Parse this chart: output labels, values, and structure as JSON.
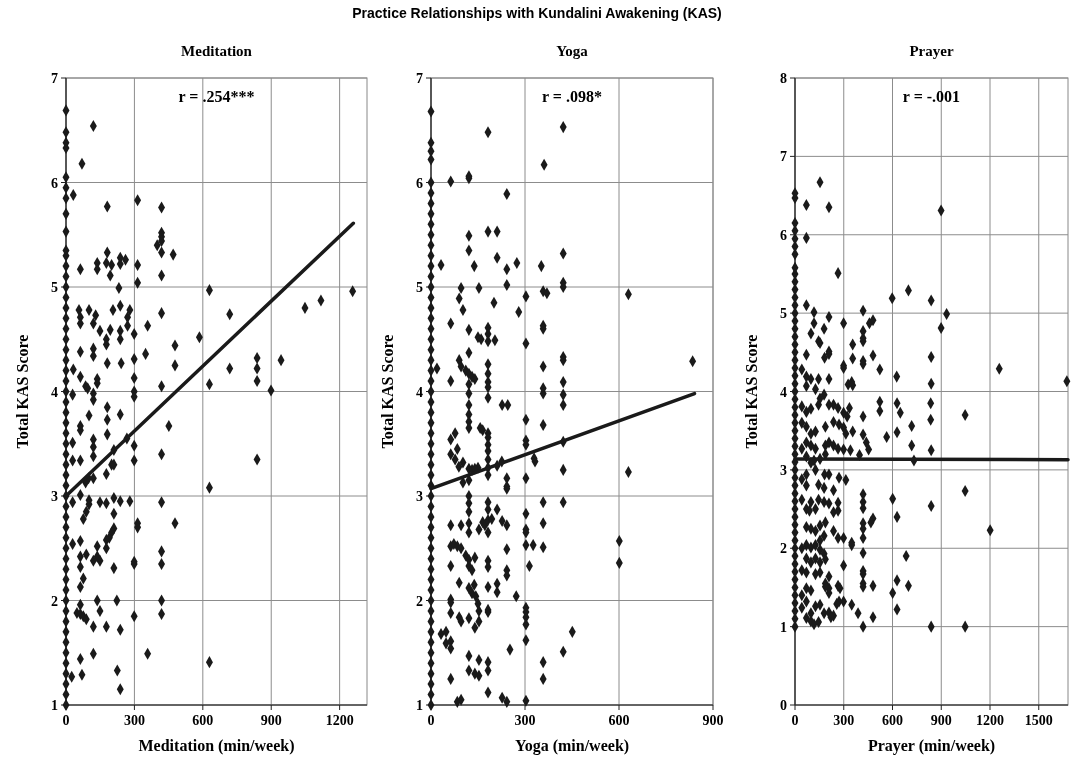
{
  "chart_data": [
    {
      "type": "other",
      "title": "Practice Relationships with Kundalini Awakening (KAS)"
    },
    {
      "type": "scatter",
      "title": "Meditation",
      "xlabel": "Meditation (min/week)",
      "ylabel": "Total KAS Score",
      "xlim": [
        0,
        1320
      ],
      "xticks": [
        0,
        300,
        600,
        900,
        1200
      ],
      "ylim": [
        1,
        7
      ],
      "yticks": [
        1,
        2,
        3,
        4,
        5,
        6,
        7
      ],
      "grid": true,
      "marker": "diamond",
      "annotations": [
        "r = .254***"
      ],
      "series": [
        {
          "color": "#1a1a1a",
          "x": [
            0,
            0,
            0,
            0,
            0,
            0,
            0,
            0,
            0,
            0,
            0,
            0,
            0,
            0,
            0,
            0,
            0,
            0,
            0,
            0,
            0,
            0,
            0,
            0,
            0,
            0,
            0,
            0,
            0,
            0,
            0,
            0,
            0,
            0,
            0,
            0,
            0,
            0,
            0,
            0,
            0,
            0,
            0,
            0,
            0,
            0,
            0,
            0,
            0,
            0,
            0,
            0,
            0,
            0
          ],
          "values": [
            1.0,
            1.1,
            1.2,
            1.3,
            1.4,
            1.5,
            1.6,
            1.7,
            1.8,
            1.9,
            2.0,
            2.1,
            2.2,
            2.3,
            2.4,
            2.5,
            2.6,
            2.7,
            2.8,
            2.9,
            3.0,
            3.1,
            3.2,
            3.3,
            3.4,
            3.5,
            3.6,
            3.7,
            3.8,
            3.9,
            4.0,
            4.1,
            4.2,
            4.3,
            4.4,
            4.5,
            4.6,
            4.7,
            4.8,
            4.9,
            5.0,
            5.1,
            5.2,
            5.3,
            5.35,
            5.53,
            5.7,
            5.85,
            5.95,
            6.05,
            6.33,
            6.38,
            6.48,
            6.69
          ]
        },
        {
          "color": "#1a1a1a",
          "x": [
            120,
            70,
            32,
            181,
            314,
            419,
            419,
            419,
            419,
            400,
            419,
            470,
            181,
            137,
            137,
            177,
            200,
            238,
            261,
            238,
            194,
            314,
            314,
            63,
            419,
            232,
            629,
            57,
            101,
            63,
            63,
            130,
            206,
            238,
            280,
            270,
            419,
            718,
            1048,
            1118,
            1257,
            120,
            149,
            194,
            177,
            177,
            238,
            238,
            270,
            299,
            358,
            585,
            478,
            63,
            120,
            120,
            181,
            299,
            349,
            242,
            478,
            838,
            838,
            838,
            943,
            899,
            718,
            629,
            419,
            32,
            63,
            137,
            137,
            86,
            95,
            299,
            299,
            299,
            120,
            120,
            29,
            181,
            101,
            181,
            181,
            238,
            451,
            63,
            63,
            120,
            120,
            29,
            267,
            299,
            210,
            120,
            63,
            29,
            200,
            210,
            177,
            299,
            419,
            838,
            86,
            99,
            120,
            629,
            29,
            63,
            101,
            101,
            149,
            177,
            210,
            238,
            280,
            419,
            89,
            76,
            210,
            210,
            200,
            190,
            314,
            314,
            478,
            177,
            177,
            29,
            63,
            137,
            137,
            149,
            89,
            63,
            63,
            120,
            210,
            299,
            299,
            419,
            419,
            76,
            63,
            137,
            223,
            419,
            419,
            63,
            48,
            63,
            76,
            89,
            149,
            120,
            177,
            238,
            299,
            358,
            120,
            629,
            63,
            70,
            225,
            238,
            25
          ],
          "values": [
            6.54,
            6.18,
            5.88,
            5.77,
            5.83,
            5.76,
            5.52,
            5.48,
            5.44,
            5.4,
            5.33,
            5.31,
            5.33,
            5.23,
            5.17,
            5.23,
            5.21,
            5.28,
            5.26,
            5.22,
            5.11,
            5.21,
            5.04,
            5.17,
            5.11,
            4.99,
            4.97,
            4.78,
            4.78,
            4.71,
            4.65,
            4.73,
            4.78,
            4.82,
            4.78,
            4.71,
            4.75,
            4.74,
            4.8,
            4.87,
            4.96,
            4.65,
            4.58,
            4.59,
            4.5,
            4.45,
            4.58,
            4.5,
            4.63,
            4.55,
            4.63,
            4.52,
            4.44,
            4.38,
            4.41,
            4.34,
            4.27,
            4.31,
            4.36,
            4.27,
            4.25,
            4.32,
            4.22,
            4.1,
            4.3,
            4.01,
            4.22,
            4.07,
            4.05,
            4.21,
            4.14,
            4.12,
            4.08,
            4.05,
            4.03,
            4.13,
            4.0,
            3.95,
            3.98,
            3.92,
            3.97,
            3.85,
            3.77,
            3.73,
            3.59,
            3.78,
            3.67,
            3.67,
            3.63,
            3.54,
            3.47,
            3.51,
            3.55,
            3.48,
            3.44,
            3.38,
            3.34,
            3.34,
            3.3,
            3.3,
            3.21,
            3.34,
            3.4,
            3.35,
            3.13,
            3.17,
            3.17,
            3.08,
            2.94,
            3.01,
            2.96,
            2.92,
            2.94,
            2.93,
            2.98,
            2.95,
            2.95,
            2.94,
            2.85,
            2.78,
            2.83,
            2.69,
            2.65,
            2.6,
            2.74,
            2.7,
            2.74,
            2.58,
            2.5,
            2.54,
            2.57,
            2.52,
            2.42,
            2.38,
            2.44,
            2.42,
            2.32,
            2.38,
            2.31,
            2.37,
            2.35,
            2.47,
            2.35,
            2.21,
            2.13,
            2.0,
            2.0,
            2.0,
            1.87,
            1.96,
            1.88,
            1.87,
            1.85,
            1.82,
            1.9,
            1.75,
            1.75,
            1.72,
            1.85,
            1.49,
            1.49,
            1.41,
            1.44,
            1.29,
            1.33,
            1.15,
            1.27
          ]
        },
        {
          "type": "line",
          "marker": "none",
          "color": "#1a1a1a",
          "x": [
            0,
            1260
          ],
          "values": [
            3.0,
            5.61
          ]
        }
      ]
    },
    {
      "type": "scatter",
      "title": "Yoga",
      "xlabel": "Yoga (min/week)",
      "ylabel": "Total KAS Score",
      "xlim": [
        0,
        900
      ],
      "xticks": [
        0,
        300,
        600,
        900
      ],
      "ylim": [
        1,
        7
      ],
      "yticks": [
        1,
        2,
        3,
        4,
        5,
        6,
        7
      ],
      "grid": true,
      "marker": "diamond",
      "annotations": [
        "r = .098*"
      ],
      "series": [
        {
          "color": "#1a1a1a",
          "x": [
            0,
            0,
            0,
            0,
            0,
            0,
            0,
            0,
            0,
            0,
            0,
            0,
            0,
            0,
            0,
            0,
            0,
            0,
            0,
            0,
            0,
            0,
            0,
            0,
            0,
            0,
            0,
            0,
            0,
            0,
            0,
            0,
            0,
            0,
            0,
            0,
            0,
            0,
            0,
            0,
            0,
            0,
            0,
            0,
            0,
            0,
            0,
            0,
            0,
            0,
            0,
            0,
            0,
            0,
            0
          ],
          "values": [
            1.0,
            1.1,
            1.2,
            1.3,
            1.4,
            1.5,
            1.6,
            1.7,
            1.8,
            1.9,
            2.0,
            2.1,
            2.2,
            2.3,
            2.4,
            2.5,
            2.6,
            2.7,
            2.8,
            2.9,
            3.0,
            3.1,
            3.2,
            3.3,
            3.4,
            3.5,
            3.6,
            3.7,
            3.8,
            3.9,
            4.0,
            4.1,
            4.2,
            4.3,
            4.4,
            4.5,
            4.6,
            4.7,
            4.8,
            4.9,
            5.0,
            5.1,
            5.2,
            5.3,
            5.4,
            5.5,
            5.6,
            5.7,
            5.8,
            5.9,
            6.0,
            6.22,
            6.3,
            6.38,
            6.68
          ]
        },
        {
          "color": "#1a1a1a",
          "x": [
            182,
            422,
            361,
            63,
            121,
            121,
            242,
            182,
            211,
            121,
            121,
            211,
            242,
            274,
            138,
            32,
            352,
            422,
            422,
            422,
            242,
            96,
            153,
            90,
            102,
            201,
            303,
            358,
            370,
            280,
            630,
            63,
            121,
            182,
            182,
            182,
            150,
            160,
            204,
            358,
            358,
            303,
            121,
            90,
            96,
            422,
            422,
            835,
            19,
            111,
            121,
            131,
            140,
            182,
            182,
            182,
            182,
            358,
            358,
            358,
            63,
            121,
            121,
            422,
            422,
            422,
            182,
            227,
            245,
            121,
            121,
            303,
            121,
            121,
            157,
            165,
            358,
            77,
            63,
            84,
            63,
            182,
            182,
            182,
            182,
            303,
            303,
            422,
            329,
            332,
            77,
            102,
            89,
            121,
            131,
            150,
            140,
            182,
            182,
            182,
            226,
            211,
            422,
            630,
            242,
            242,
            242,
            303,
            102,
            121,
            121,
            121,
            121,
            182,
            182,
            358,
            422,
            211,
            63,
            96,
            121,
            121,
            165,
            172,
            182,
            194,
            153,
            182,
            227,
            242,
            303,
            303,
            303,
            303,
            358,
            358,
            326,
            63,
            73,
            84,
            96,
            242,
            601,
            601,
            63,
            111,
            121,
            121,
            140,
            131,
            182,
            182,
            314,
            242,
            242,
            90,
            121,
            138,
            131,
            143,
            150,
            182,
            211,
            211,
            272,
            63,
            63,
            153,
            182,
            182,
            63,
            90,
            96,
            121,
            140,
            153,
            303,
            303,
            303,
            303,
            303,
            32,
            48,
            48,
            63,
            63,
            451,
            422,
            252,
            121,
            153,
            182,
            182,
            121,
            140,
            153,
            358,
            358,
            63,
            182,
            227,
            242,
            84,
            96,
            303
          ],
          "values": [
            6.48,
            6.53,
            6.17,
            6.01,
            6.06,
            6.04,
            5.89,
            5.53,
            5.53,
            5.49,
            5.35,
            5.28,
            5.17,
            5.23,
            5.2,
            5.21,
            5.2,
            5.32,
            5.04,
            5.0,
            5.02,
            4.99,
            4.99,
            4.89,
            4.78,
            4.85,
            4.91,
            4.96,
            4.94,
            4.76,
            4.93,
            4.65,
            4.59,
            4.61,
            4.55,
            4.48,
            4.52,
            4.5,
            4.49,
            4.63,
            4.6,
            4.46,
            4.37,
            4.3,
            4.24,
            4.33,
            4.3,
            4.29,
            4.22,
            4.2,
            4.17,
            4.14,
            4.12,
            4.26,
            4.17,
            4.09,
            4.04,
            4.24,
            4.03,
            3.98,
            4.1,
            4.07,
            3.98,
            4.09,
            3.97,
            3.87,
            3.94,
            3.87,
            3.87,
            3.87,
            3.78,
            3.73,
            3.71,
            3.65,
            3.65,
            3.63,
            3.68,
            3.6,
            3.54,
            3.45,
            3.4,
            3.6,
            3.56,
            3.49,
            3.43,
            3.53,
            3.49,
            3.52,
            3.36,
            3.33,
            3.35,
            3.32,
            3.28,
            3.26,
            3.25,
            3.27,
            3.26,
            3.35,
            3.27,
            3.2,
            3.33,
            3.29,
            3.25,
            3.23,
            3.17,
            3.09,
            3.07,
            3.17,
            3.13,
            3.15,
            3.0,
            2.93,
            2.85,
            2.94,
            2.87,
            2.94,
            2.94,
            2.87,
            2.72,
            2.72,
            2.74,
            2.65,
            2.75,
            2.72,
            2.77,
            2.78,
            2.68,
            2.65,
            2.76,
            2.72,
            2.83,
            2.68,
            2.65,
            2.53,
            2.74,
            2.51,
            2.53,
            2.52,
            2.54,
            2.52,
            2.5,
            2.49,
            2.57,
            2.36,
            2.33,
            2.43,
            2.39,
            2.33,
            2.41,
            2.29,
            2.38,
            2.32,
            2.33,
            2.29,
            2.24,
            2.17,
            2.12,
            2.15,
            2.07,
            2.04,
            1.97,
            2.13,
            2.16,
            2.08,
            2.04,
            2.01,
            1.98,
            1.9,
            1.89,
            1.91,
            1.88,
            1.84,
            1.8,
            1.83,
            1.74,
            1.8,
            1.93,
            1.89,
            1.84,
            1.77,
            1.62,
            1.68,
            1.7,
            1.59,
            1.61,
            1.54,
            1.7,
            1.51,
            1.53,
            1.47,
            1.43,
            1.41,
            1.33,
            1.33,
            1.3,
            1.28,
            1.41,
            1.25,
            1.25,
            1.12,
            1.07,
            1.03,
            1.03,
            1.05,
            1.04
          ]
        },
        {
          "type": "line",
          "marker": "none",
          "color": "#1a1a1a",
          "x": [
            0,
            841
          ],
          "values": [
            3.07,
            3.98
          ]
        }
      ]
    },
    {
      "type": "scatter",
      "title": "Prayer",
      "xlabel": "Prayer (min/week)",
      "ylabel": "Total KAS Score",
      "xlim": [
        0,
        1680
      ],
      "xticks": [
        0,
        300,
        600,
        900,
        1200,
        1500
      ],
      "ylim": [
        0,
        8
      ],
      "yticks": [
        0,
        1,
        2,
        3,
        4,
        5,
        6,
        7,
        8
      ],
      "grid": true,
      "marker": "diamond",
      "annotations": [
        "r = -.001"
      ],
      "series": [
        {
          "color": "#1a1a1a",
          "x": [
            0,
            0,
            0,
            0,
            0,
            0,
            0,
            0,
            0,
            0,
            0,
            0,
            0,
            0,
            0,
            0,
            0,
            0,
            0,
            0,
            0,
            0,
            0,
            0,
            0,
            0,
            0,
            0,
            0,
            0,
            0,
            0,
            0,
            0,
            0,
            0,
            0,
            0,
            0,
            0,
            0,
            0,
            0,
            0,
            0,
            0,
            0,
            0,
            0,
            0,
            0,
            0,
            0,
            0
          ],
          "values": [
            1.0,
            1.1,
            1.2,
            1.3,
            1.4,
            1.5,
            1.6,
            1.7,
            1.8,
            1.9,
            2.0,
            2.1,
            2.2,
            2.3,
            2.4,
            2.5,
            2.6,
            2.7,
            2.8,
            2.9,
            3.0,
            3.1,
            3.2,
            3.3,
            3.4,
            3.5,
            3.6,
            3.7,
            3.8,
            3.9,
            4.0,
            4.1,
            4.2,
            4.3,
            4.4,
            4.5,
            4.6,
            4.7,
            4.8,
            4.9,
            5.0,
            5.1,
            5.2,
            5.3,
            5.4,
            5.5,
            5.58,
            5.75,
            5.85,
            5.95,
            6.05,
            6.15,
            6.47,
            6.53
          ]
        },
        {
          "color": "#1a1a1a",
          "x": [
            154,
            70,
            209,
            899,
            70,
            265,
            698,
            598,
            838,
            933,
            899,
            70,
            117,
            209,
            419,
            299,
            458,
            480,
            419,
            179,
            98,
            117,
            145,
            154,
            355,
            419,
            419,
            70,
            182,
            209,
            209,
            480,
            419,
            419,
            299,
            299,
            355,
            522,
            838,
            1257,
            1673,
            626,
            838,
            42,
            70,
            98,
            70,
            145,
            126,
            209,
            179,
            327,
            349,
            355,
            42,
            70,
            98,
            154,
            145,
            209,
            237,
            265,
            299,
            321,
            335,
            419,
            522,
            522,
            628,
            648,
            835,
            835,
            1047,
            564,
            718,
            628,
            718,
            838,
            732,
            42,
            70,
            98,
            126,
            237,
            187,
            271,
            299,
            313,
            355,
            419,
            439,
            453,
            70,
            98,
            126,
            42,
            187,
            209,
            237,
            265,
            299,
            341,
            397,
            70,
            117,
            154,
            187,
            98,
            70,
            42,
            126,
            182,
            209,
            271,
            313,
            70,
            145,
            179,
            237,
            419,
            601,
            1047,
            42,
            98,
            145,
            179,
            209,
            265,
            419,
            419,
            838,
            70,
            89,
            126,
            237,
            265,
            628,
            480,
            467,
            187,
            154,
            70,
            98,
            126,
            419,
            419,
            1201,
            237,
            265,
            299,
            419,
            179,
            154,
            70,
            98,
            126,
            42,
            349,
            349,
            154,
            179,
            419,
            70,
            98,
            126,
            154,
            187,
            684,
            299,
            42,
            70,
            126,
            154,
            419,
            419,
            628,
            209,
            209,
            209,
            187,
            187,
            419,
            419,
            480,
            698,
            70,
            98,
            42,
            265,
            277,
            601,
            299,
            271,
            257,
            70,
            126,
            154,
            349,
            628,
            42,
            98,
            179,
            209,
            237,
            221,
            388,
            480,
            70,
            98,
            117,
            145,
            419,
            838,
            1047
          ],
          "values": [
            6.67,
            6.38,
            6.35,
            6.31,
            5.96,
            5.51,
            5.29,
            5.19,
            5.16,
            4.99,
            4.81,
            5.1,
            5.01,
            4.95,
            5.03,
            4.87,
            4.87,
            4.91,
            4.77,
            4.8,
            4.74,
            4.87,
            4.64,
            4.62,
            4.6,
            4.68,
            4.64,
            4.47,
            4.43,
            4.51,
            4.48,
            4.46,
            4.39,
            4.35,
            4.33,
            4.3,
            4.42,
            4.28,
            4.44,
            4.29,
            4.13,
            4.19,
            4.1,
            4.28,
            4.19,
            4.16,
            4.07,
            4.16,
            4.03,
            4.16,
            3.96,
            4.09,
            4.12,
            4.08,
            3.81,
            3.74,
            3.78,
            3.91,
            3.83,
            3.83,
            3.83,
            3.79,
            3.73,
            3.68,
            3.79,
            3.68,
            3.87,
            3.75,
            3.85,
            3.73,
            3.85,
            3.64,
            3.7,
            3.42,
            3.56,
            3.48,
            3.31,
            3.25,
            3.12,
            3.6,
            3.55,
            3.46,
            3.49,
            3.61,
            3.55,
            3.58,
            3.54,
            3.46,
            3.49,
            3.45,
            3.35,
            3.26,
            3.35,
            3.31,
            3.27,
            3.27,
            3.31,
            3.35,
            3.31,
            3.27,
            3.26,
            3.25,
            3.19,
            3.17,
            3.12,
            3.14,
            3.2,
            3.09,
            2.94,
            2.88,
            3.0,
            2.94,
            2.94,
            2.9,
            2.87,
            2.8,
            2.81,
            2.77,
            2.74,
            2.69,
            2.63,
            2.73,
            2.62,
            2.59,
            2.62,
            2.59,
            2.57,
            2.58,
            2.59,
            2.51,
            2.54,
            2.5,
            2.48,
            2.5,
            2.46,
            2.48,
            2.4,
            2.38,
            2.33,
            2.33,
            2.29,
            2.27,
            2.25,
            2.22,
            2.32,
            2.25,
            2.23,
            2.22,
            2.13,
            2.13,
            2.13,
            2.16,
            2.1,
            2.04,
            2.01,
            2.04,
            2.0,
            2.07,
            2.04,
            1.98,
            1.93,
            1.94,
            1.87,
            1.82,
            1.87,
            1.82,
            1.86,
            1.9,
            1.78,
            1.72,
            1.69,
            1.67,
            1.69,
            1.71,
            1.67,
            1.59,
            1.64,
            1.49,
            1.43,
            1.55,
            1.51,
            1.55,
            1.51,
            1.52,
            1.52,
            1.49,
            1.46,
            1.4,
            1.52,
            1.49,
            1.43,
            1.32,
            1.32,
            1.29,
            1.32,
            1.26,
            1.28,
            1.28,
            1.22,
            1.24,
            1.17,
            1.17,
            1.18,
            1.14,
            1.12,
            1.17,
            1.12,
            1.11,
            1.07,
            1.03,
            1.06,
            1.0,
            1.0,
            1.0
          ]
        },
        {
          "type": "line",
          "marker": "none",
          "color": "#1a1a1a",
          "x": [
            0,
            1680
          ],
          "values": [
            3.14,
            3.13
          ]
        }
      ]
    }
  ]
}
